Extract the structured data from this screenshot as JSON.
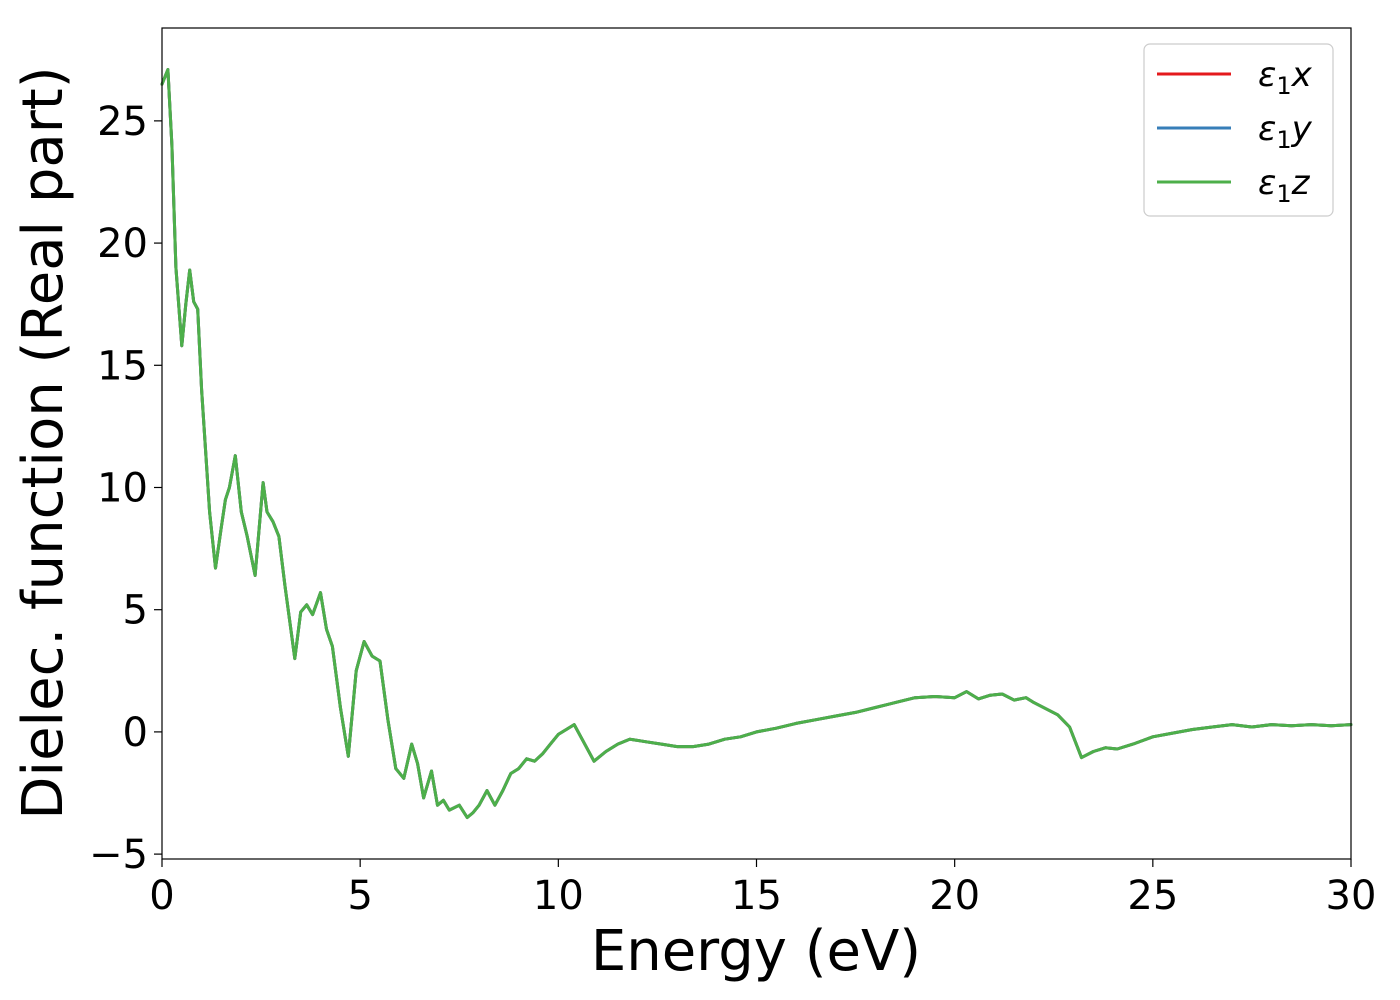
{
  "chart_data": {
    "type": "line",
    "title": "",
    "xlabel": "Energy (eV)",
    "ylabel": "Dielec. function (Real part)",
    "xlim": [
      0,
      30
    ],
    "ylim": [
      -5.2,
      28.8
    ],
    "xticks": [
      0,
      5,
      10,
      15,
      20,
      25,
      30
    ],
    "xtick_labels": [
      "0",
      "5",
      "10",
      "15",
      "20",
      "25",
      "30"
    ],
    "yticks": [
      -5,
      0,
      5,
      10,
      15,
      20,
      25
    ],
    "ytick_labels": [
      "−5",
      "0",
      "5",
      "10",
      "15",
      "20",
      "25"
    ],
    "grid": false,
    "legend_position": "top-right",
    "x": [
      0,
      0.15,
      0.25,
      0.35,
      0.5,
      0.6,
      0.7,
      0.8,
      0.9,
      1.0,
      1.2,
      1.35,
      1.5,
      1.6,
      1.7,
      1.85,
      2.0,
      2.15,
      2.35,
      2.55,
      2.65,
      2.8,
      2.95,
      3.1,
      3.35,
      3.5,
      3.65,
      3.8,
      4.0,
      4.15,
      4.3,
      4.5,
      4.7,
      4.9,
      5.1,
      5.3,
      5.5,
      5.7,
      5.9,
      6.1,
      6.3,
      6.45,
      6.6,
      6.8,
      6.95,
      7.1,
      7.25,
      7.5,
      7.7,
      7.85,
      8.0,
      8.2,
      8.4,
      8.6,
      8.8,
      9.0,
      9.2,
      9.4,
      9.6,
      9.8,
      10.0,
      10.2,
      10.4,
      10.6,
      10.9,
      11.2,
      11.5,
      11.8,
      12.2,
      12.6,
      13.0,
      13.4,
      13.8,
      14.2,
      14.6,
      15.0,
      15.5,
      16.0,
      16.5,
      17.0,
      17.5,
      18.0,
      18.5,
      19.0,
      19.5,
      20.0,
      20.3,
      20.6,
      20.9,
      21.2,
      21.5,
      21.8,
      22.0,
      22.3,
      22.6,
      22.9,
      23.2,
      23.5,
      23.8,
      24.1,
      24.5,
      25.0,
      25.5,
      26.0,
      26.5,
      27.0,
      27.5,
      28.0,
      28.5,
      29.0,
      29.5,
      30.0
    ],
    "series": [
      {
        "name": "ε1x",
        "color": "#e41a1c",
        "y": [
          26.5,
          27.1,
          24.0,
          19.0,
          15.8,
          17.5,
          18.9,
          17.6,
          17.3,
          14.0,
          9.0,
          6.7,
          8.4,
          9.5,
          10.0,
          11.3,
          9.0,
          8.0,
          6.4,
          10.2,
          9.0,
          8.6,
          8.0,
          6.0,
          3.0,
          4.9,
          5.2,
          4.8,
          5.7,
          4.2,
          3.5,
          1.0,
          -1.0,
          2.5,
          3.7,
          3.1,
          2.9,
          0.5,
          -1.5,
          -1.9,
          -0.5,
          -1.3,
          -2.7,
          -1.6,
          -3.0,
          -2.8,
          -3.2,
          -3.0,
          -3.5,
          -3.3,
          -3.0,
          -2.4,
          -3.0,
          -2.4,
          -1.7,
          -1.5,
          -1.1,
          -1.2,
          -0.9,
          -0.5,
          -0.1,
          0.1,
          0.3,
          -0.3,
          -1.2,
          -0.8,
          -0.5,
          -0.3,
          -0.4,
          -0.5,
          -0.6,
          -0.6,
          -0.5,
          -0.3,
          -0.2,
          0.0,
          0.15,
          0.35,
          0.5,
          0.65,
          0.8,
          1.0,
          1.2,
          1.4,
          1.45,
          1.4,
          1.65,
          1.35,
          1.5,
          1.55,
          1.3,
          1.4,
          1.2,
          0.95,
          0.7,
          0.2,
          -1.05,
          -0.8,
          -0.65,
          -0.7,
          -0.5,
          -0.2,
          -0.05,
          0.1,
          0.2,
          0.3,
          0.2,
          0.3,
          0.25,
          0.3,
          0.25,
          0.3
        ]
      },
      {
        "name": "ε1y",
        "color": "#377eb8",
        "y": [
          26.5,
          27.1,
          24.0,
          19.0,
          15.8,
          17.5,
          18.9,
          17.6,
          17.3,
          14.0,
          9.0,
          6.7,
          8.4,
          9.5,
          10.0,
          11.3,
          9.0,
          8.0,
          6.4,
          10.2,
          9.0,
          8.6,
          8.0,
          6.0,
          3.0,
          4.9,
          5.2,
          4.8,
          5.7,
          4.2,
          3.5,
          1.0,
          -1.0,
          2.5,
          3.7,
          3.1,
          2.9,
          0.5,
          -1.5,
          -1.9,
          -0.5,
          -1.3,
          -2.7,
          -1.6,
          -3.0,
          -2.8,
          -3.2,
          -3.0,
          -3.5,
          -3.3,
          -3.0,
          -2.4,
          -3.0,
          -2.4,
          -1.7,
          -1.5,
          -1.1,
          -1.2,
          -0.9,
          -0.5,
          -0.1,
          0.1,
          0.3,
          -0.3,
          -1.2,
          -0.8,
          -0.5,
          -0.3,
          -0.4,
          -0.5,
          -0.6,
          -0.6,
          -0.5,
          -0.3,
          -0.2,
          0.0,
          0.15,
          0.35,
          0.5,
          0.65,
          0.8,
          1.0,
          1.2,
          1.4,
          1.45,
          1.4,
          1.65,
          1.35,
          1.5,
          1.55,
          1.3,
          1.4,
          1.2,
          0.95,
          0.7,
          0.2,
          -1.05,
          -0.8,
          -0.65,
          -0.7,
          -0.5,
          -0.2,
          -0.05,
          0.1,
          0.2,
          0.3,
          0.2,
          0.3,
          0.25,
          0.3,
          0.25,
          0.3
        ]
      },
      {
        "name": "ε1z",
        "color": "#4daf4a",
        "y": [
          26.5,
          27.1,
          24.0,
          19.0,
          15.8,
          17.5,
          18.9,
          17.6,
          17.3,
          14.0,
          9.0,
          6.7,
          8.4,
          9.5,
          10.0,
          11.3,
          9.0,
          8.0,
          6.4,
          10.2,
          9.0,
          8.6,
          8.0,
          6.0,
          3.0,
          4.9,
          5.2,
          4.8,
          5.7,
          4.2,
          3.5,
          1.0,
          -1.0,
          2.5,
          3.7,
          3.1,
          2.9,
          0.5,
          -1.5,
          -1.9,
          -0.5,
          -1.3,
          -2.7,
          -1.6,
          -3.0,
          -2.8,
          -3.2,
          -3.0,
          -3.5,
          -3.3,
          -3.0,
          -2.4,
          -3.0,
          -2.4,
          -1.7,
          -1.5,
          -1.1,
          -1.2,
          -0.9,
          -0.5,
          -0.1,
          0.1,
          0.3,
          -0.3,
          -1.2,
          -0.8,
          -0.5,
          -0.3,
          -0.4,
          -0.5,
          -0.6,
          -0.6,
          -0.5,
          -0.3,
          -0.2,
          0.0,
          0.15,
          0.35,
          0.5,
          0.65,
          0.8,
          1.0,
          1.2,
          1.4,
          1.45,
          1.4,
          1.65,
          1.35,
          1.5,
          1.55,
          1.3,
          1.4,
          1.2,
          0.95,
          0.7,
          0.2,
          -1.05,
          -0.8,
          -0.65,
          -0.7,
          -0.5,
          -0.2,
          -0.05,
          0.1,
          0.2,
          0.3,
          0.2,
          0.3,
          0.25,
          0.3,
          0.25,
          0.3
        ]
      }
    ],
    "legend": [
      {
        "symbol": "ε",
        "sub": "1",
        "axis": "x",
        "color": "#e41a1c"
      },
      {
        "symbol": "ε",
        "sub": "1",
        "axis": "y",
        "color": "#377eb8"
      },
      {
        "symbol": "ε",
        "sub": "1",
        "axis": "z",
        "color": "#4daf4a"
      }
    ]
  }
}
